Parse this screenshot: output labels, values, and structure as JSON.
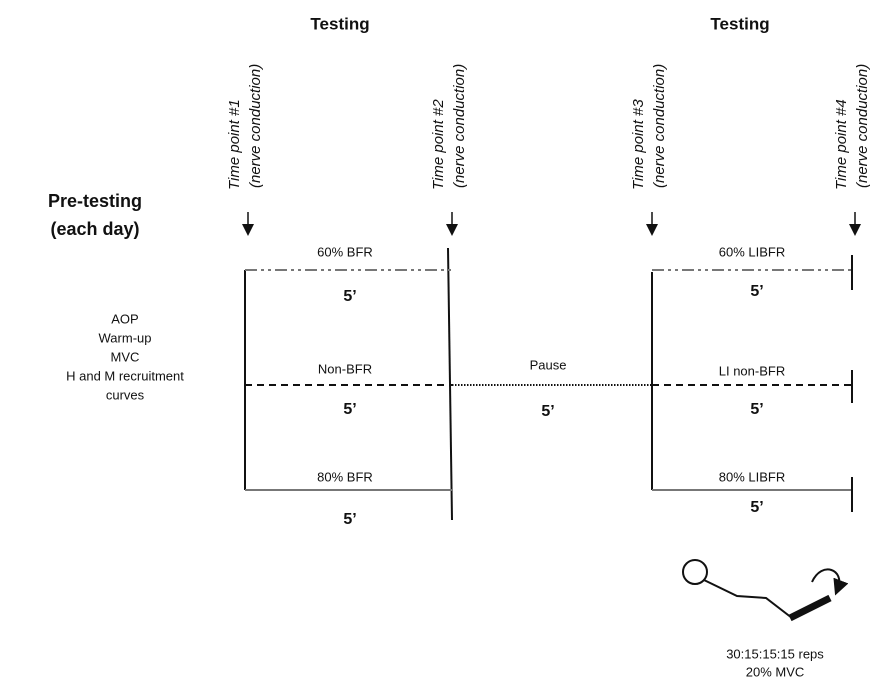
{
  "header": {
    "testing_left": "Testing",
    "testing_right": "Testing"
  },
  "time_points": [
    {
      "label": "Time point #1",
      "sublabel": "(nerve conduction)"
    },
    {
      "label": "Time point #2",
      "sublabel": "(nerve conduction)"
    },
    {
      "label": "Time point #3",
      "sublabel": "(nerve conduction)"
    },
    {
      "label": "Time point #4",
      "sublabel": "(nerve conduction)"
    }
  ],
  "pre_testing": {
    "title": "Pre-testing",
    "subtitle": "(each day)",
    "items": [
      "AOP",
      "Warm-up",
      "MVC",
      "H and M recruitment",
      "curves"
    ]
  },
  "left_conditions": [
    {
      "label": "60% BFR",
      "duration": "5’"
    },
    {
      "label": "Non-BFR",
      "duration": "5’"
    },
    {
      "label": "80% BFR",
      "duration": "5’"
    }
  ],
  "pause": {
    "label": "Pause",
    "duration": "5’"
  },
  "right_conditions": [
    {
      "label": "60% LIBFR",
      "duration": "5’"
    },
    {
      "label": "LI non-BFR",
      "duration": "5’"
    },
    {
      "label": "80% LIBFR",
      "duration": "5’"
    }
  ],
  "exercise": {
    "reps": "30:15:15:15 reps",
    "load": "20% MVC"
  }
}
